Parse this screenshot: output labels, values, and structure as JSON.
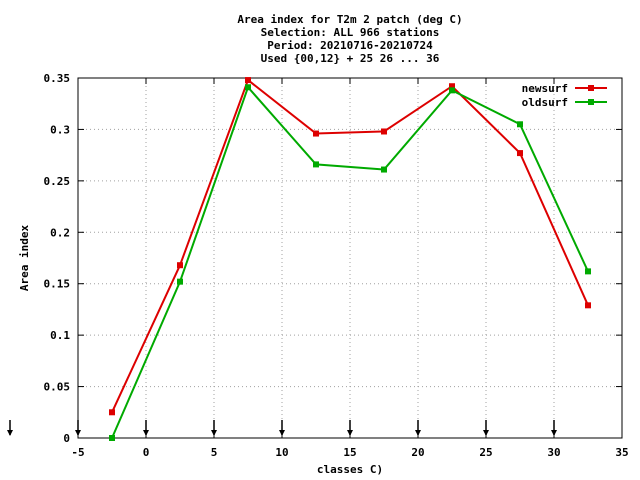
{
  "chart_data": {
    "type": "line",
    "title_lines": [
      "Area index  for T2m 2 patch (deg C)",
      "Selection: ALL    966 stations",
      "Period: 20210716-20210724",
      "Used {00,12} + 25 26 ... 36"
    ],
    "xlabel": "classes C)",
    "ylabel": "Area index",
    "xlim": [
      -5,
      35
    ],
    "ylim": [
      0,
      0.35
    ],
    "xticks": [
      -5,
      0,
      5,
      10,
      15,
      20,
      25,
      30,
      35
    ],
    "yticks": [
      0,
      0.05,
      0.1,
      0.15,
      0.2,
      0.25,
      0.3,
      0.35
    ],
    "ytick_labels": [
      "0",
      "0.05",
      "0.1",
      "0.15",
      "0.2",
      "0.25",
      "0.3",
      "0.35"
    ],
    "grid": true,
    "legend_position": "top-right",
    "arrow_markers_x": [
      -10,
      -5,
      0,
      5,
      10,
      15,
      20,
      25,
      30
    ],
    "series": [
      {
        "name": "newsurf",
        "color": "#dd0000",
        "x": [
          -2.5,
          2.5,
          7.5,
          12.5,
          17.5,
          22.5,
          27.5,
          32.5
        ],
        "y": [
          0.025,
          0.168,
          0.348,
          0.296,
          0.298,
          0.342,
          0.277,
          0.129
        ]
      },
      {
        "name": "oldsurf",
        "color": "#00aa00",
        "x": [
          -2.5,
          2.5,
          7.5,
          12.5,
          17.5,
          22.5,
          27.5,
          32.5
        ],
        "y": [
          0.0,
          0.152,
          0.341,
          0.266,
          0.261,
          0.338,
          0.305,
          0.162
        ]
      }
    ]
  }
}
